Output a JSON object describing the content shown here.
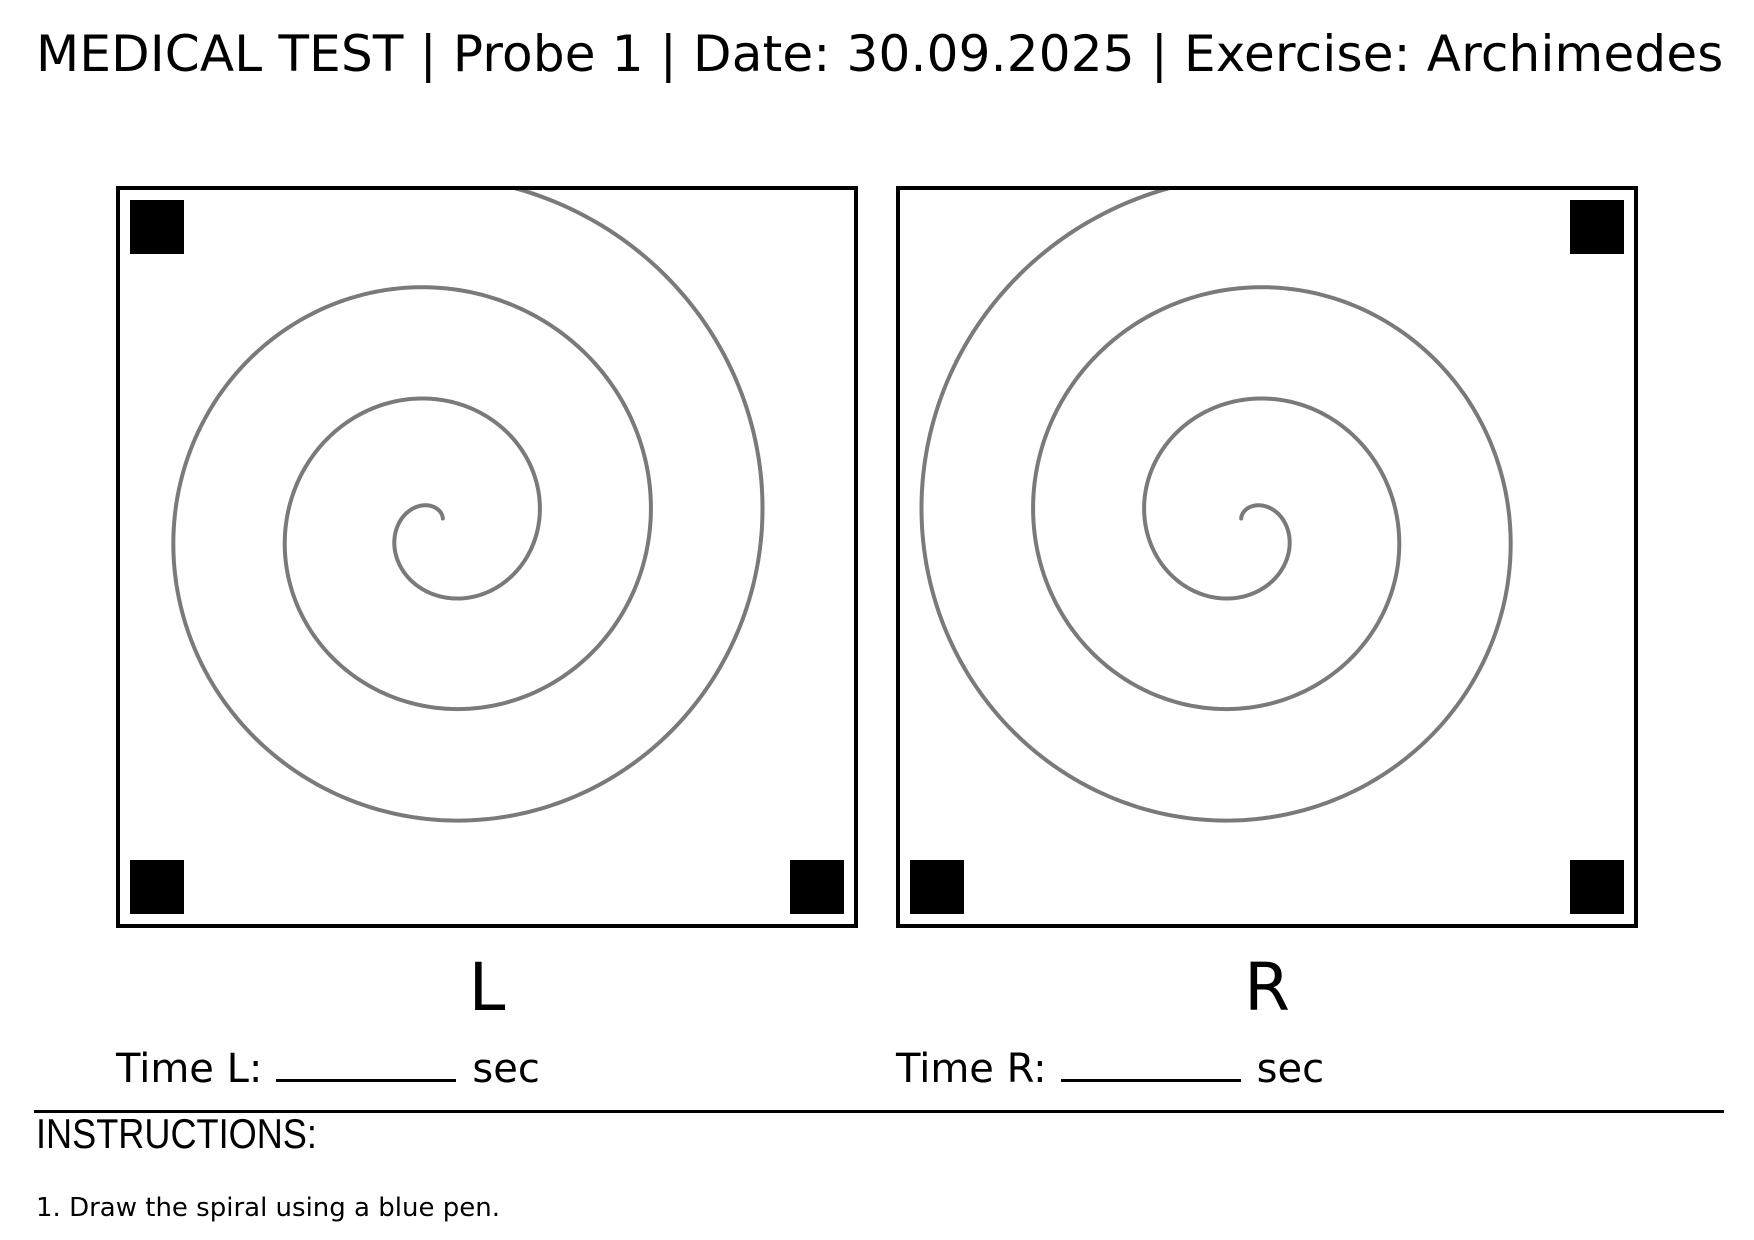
{
  "header": {
    "title": "MEDICAL TEST | Probe 1 | Date: 30.09.2025 | Exercise: Archimedes"
  },
  "panels": {
    "left": {
      "side_label": "L"
    },
    "right": {
      "side_label": "R"
    }
  },
  "time_fields": {
    "left": {
      "label": "Time L:",
      "unit": "sec"
    },
    "right": {
      "label": "Time R:",
      "unit": "sec"
    }
  },
  "instructions": {
    "title": "INSTRUCTIONS:",
    "items": [
      "1. Draw the spiral using a blue pen."
    ]
  },
  "colors": {
    "spiral": "#7a7a7a",
    "border": "#000000",
    "marker": "#000000"
  }
}
